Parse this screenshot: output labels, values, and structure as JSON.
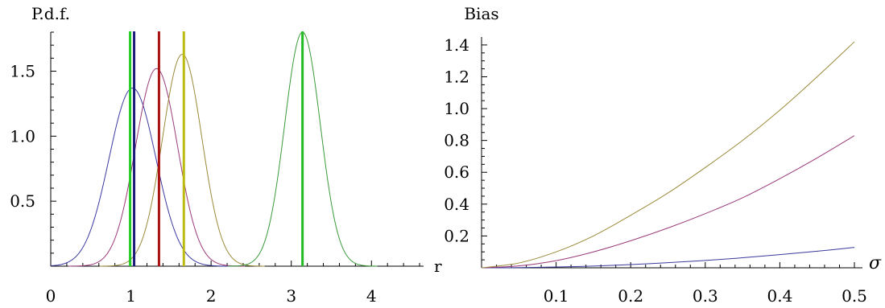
{
  "chart_data": [
    {
      "type": "line",
      "title": "",
      "ylabel": "P.d.f.",
      "xlabel": "r",
      "xlim": [
        0,
        4.65
      ],
      "ylim": [
        0,
        1.8
      ],
      "x_ticks": [
        0,
        1,
        2,
        3,
        4
      ],
      "x_tick_labels": [
        "0",
        "1",
        "2",
        "3",
        "4"
      ],
      "y_ticks": [
        0.5,
        1.0,
        1.5
      ],
      "y_tick_labels": [
        "0.5",
        "1.0",
        "1.5"
      ],
      "grid": false,
      "curves": [
        {
          "color": "#3a3aa0",
          "mean": 1.02,
          "sd": 0.292,
          "peak": 1.37
        },
        {
          "color": "#9a3a7a",
          "mean": 1.32,
          "sd": 0.262,
          "peak": 1.52
        },
        {
          "color": "#9a8a3a",
          "mean": 1.64,
          "sd": 0.245,
          "peak": 1.63
        },
        {
          "color": "#3a9a3a",
          "mean": 3.14,
          "sd": 0.222,
          "peak": 1.8
        }
      ],
      "vertical_lines": [
        {
          "x": 0.99,
          "color": "#22cc22"
        },
        {
          "x": 1.04,
          "color": "#1c1c78"
        },
        {
          "x": 1.35,
          "color": "#aa1111"
        },
        {
          "x": 1.66,
          "color": "#bbbb11"
        },
        {
          "x": 3.14,
          "color": "#22bb22"
        }
      ]
    },
    {
      "type": "line",
      "title": "",
      "ylabel": "Bias",
      "xlabel": "σ",
      "xlim": [
        0,
        0.5
      ],
      "ylim": [
        0,
        1.45
      ],
      "x_ticks": [
        0.1,
        0.2,
        0.3,
        0.4,
        0.5
      ],
      "x_tick_labels": [
        "0.1",
        "0.2",
        "0.3",
        "0.4",
        "0.5"
      ],
      "y_ticks": [
        0.2,
        0.4,
        0.6,
        0.8,
        1.0,
        1.2,
        1.4
      ],
      "y_tick_labels": [
        "0.2",
        "0.4",
        "0.6",
        "0.8",
        "1.0",
        "1.2",
        "1.4"
      ],
      "grid": false,
      "series": [
        {
          "color": "#3a3aa0",
          "x": [
            0,
            0.05,
            0.1,
            0.15,
            0.2,
            0.25,
            0.3,
            0.35,
            0.4,
            0.45,
            0.5
          ],
          "y": [
            0,
            0.001,
            0.005,
            0.011,
            0.02,
            0.032,
            0.046,
            0.063,
            0.083,
            0.104,
            0.128
          ]
        },
        {
          "color": "#9a3a7a",
          "x": [
            0,
            0.05,
            0.1,
            0.15,
            0.2,
            0.25,
            0.3,
            0.35,
            0.4,
            0.45,
            0.5
          ],
          "y": [
            0,
            0.012,
            0.045,
            0.1,
            0.17,
            0.25,
            0.34,
            0.44,
            0.56,
            0.69,
            0.83
          ]
        },
        {
          "color": "#9a8a3a",
          "x": [
            0,
            0.05,
            0.1,
            0.15,
            0.2,
            0.25,
            0.3,
            0.35,
            0.4,
            0.45,
            0.5
          ],
          "y": [
            0,
            0.03,
            0.1,
            0.2,
            0.33,
            0.47,
            0.63,
            0.8,
            0.99,
            1.2,
            1.42
          ]
        }
      ]
    }
  ]
}
